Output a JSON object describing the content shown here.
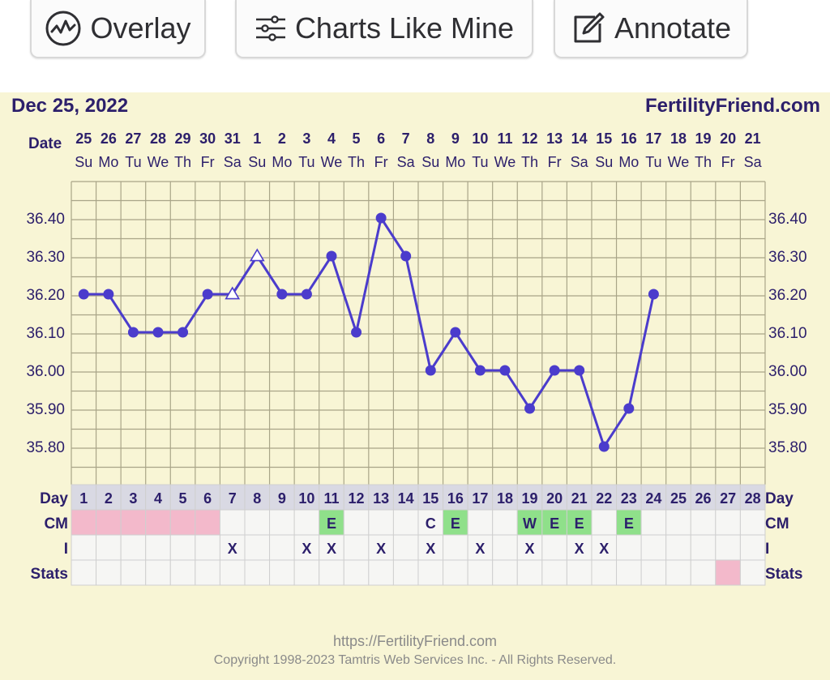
{
  "toolbar": {
    "overlay_label": "Overlay",
    "charts_like_mine_label": "Charts Like Mine",
    "annotate_label": "Annotate"
  },
  "chart_header": {
    "date": "Dec 25, 2022",
    "site": "FertilityFriend.com",
    "date_row_label": "Date",
    "dates": [
      "25",
      "26",
      "27",
      "28",
      "29",
      "30",
      "31",
      "1",
      "2",
      "3",
      "4",
      "5",
      "6",
      "7",
      "8",
      "9",
      "10",
      "11",
      "12",
      "13",
      "14",
      "15",
      "16",
      "17",
      "18",
      "19",
      "20",
      "21"
    ],
    "weekdays": [
      "Su",
      "Mo",
      "Tu",
      "We",
      "Th",
      "Fr",
      "Sa",
      "Su",
      "Mo",
      "Tu",
      "We",
      "Th",
      "Fr",
      "Sa",
      "Su",
      "Mo",
      "Tu",
      "We",
      "Th",
      "Fr",
      "Sa",
      "Su",
      "Mo",
      "Tu",
      "We",
      "Th",
      "Fr",
      "Sa"
    ]
  },
  "chart_data": {
    "type": "line",
    "y_ticks": [
      "36.40",
      "36.30",
      "36.20",
      "36.10",
      "36.00",
      "35.90",
      "35.80"
    ],
    "ylim": [
      35.6,
      36.5
    ],
    "grid": true,
    "x": [
      1,
      2,
      3,
      4,
      5,
      6,
      7,
      8,
      9,
      10,
      11,
      12,
      13,
      14,
      15,
      16,
      17,
      18,
      19,
      20,
      21,
      22,
      23,
      24
    ],
    "values": [
      36.2,
      36.2,
      36.1,
      36.1,
      36.1,
      36.2,
      36.2,
      36.3,
      36.2,
      36.2,
      36.3,
      36.1,
      36.4,
      36.3,
      36.0,
      36.1,
      36.0,
      36.0,
      35.9,
      36.0,
      36.0,
      35.8,
      35.9,
      36.2
    ],
    "hollow_markers_on_days": [
      7,
      8
    ],
    "line_color": "#4b3ccc",
    "marker_color": "#4b3ccc"
  },
  "table": {
    "day_label": "Day",
    "cm_label": "CM",
    "i_label": "I",
    "stats_label": "Stats",
    "days": [
      "1",
      "2",
      "3",
      "4",
      "5",
      "6",
      "7",
      "8",
      "9",
      "10",
      "11",
      "12",
      "13",
      "14",
      "15",
      "16",
      "17",
      "18",
      "19",
      "20",
      "21",
      "22",
      "23",
      "24",
      "25",
      "26",
      "27",
      "28"
    ],
    "cm": [
      "",
      "",
      "",
      "",
      "",
      "",
      "",
      "",
      "",
      "",
      "E",
      "",
      "",
      "",
      "C",
      "E",
      "",
      "",
      "W",
      "E",
      "E",
      "",
      "E",
      "",
      "",
      "",
      "",
      ""
    ],
    "cm_highlight": [
      "pink",
      "pink",
      "pink",
      "pink",
      "pink",
      "pink",
      "",
      "",
      "",
      "",
      "green",
      "",
      "",
      "",
      "",
      "green",
      "",
      "",
      "green",
      "green",
      "green",
      "",
      "green",
      "",
      "",
      "",
      "",
      ""
    ],
    "i": [
      "",
      "",
      "",
      "",
      "",
      "",
      "X",
      "",
      "",
      "X",
      "X",
      "",
      "X",
      "",
      "X",
      "",
      "X",
      "",
      "X",
      "",
      "X",
      "X",
      "",
      "",
      "",
      "",
      "",
      ""
    ],
    "stats_highlight": [
      "",
      "",
      "",
      "",
      "",
      "",
      "",
      "",
      "",
      "",
      "",
      "",
      "",
      "",
      "",
      "",
      "",
      "",
      "",
      "",
      "",
      "",
      "",
      "",
      "",
      "",
      "pink",
      ""
    ]
  },
  "colors": {
    "panel_bg": "#f8f5d5",
    "header_text": "#2c1f6b",
    "grid_line": "#a9a588",
    "pink": "#f3b9cb",
    "green": "#8fe08a",
    "table_cell": "#f6f6f4"
  },
  "footer": {
    "url": "https://FertilityFriend.com",
    "copyright": "Copyright 1998-2023 Tamtris Web Services Inc. - All Rights Reserved."
  }
}
